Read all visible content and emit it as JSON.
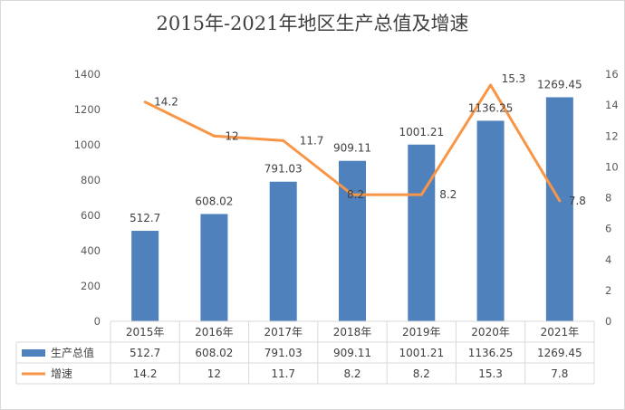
{
  "chart_data": {
    "type": "bar+line",
    "title": "2015年-2021年地区生产总值及增速",
    "categories": [
      "2015年",
      "2016年",
      "2017年",
      "2018年",
      "2019年",
      "2020年",
      "2021年"
    ],
    "series": [
      {
        "name": "生产总值",
        "type": "bar",
        "axis": "left",
        "color": "#4f81bd",
        "values": [
          512.7,
          608.02,
          791.03,
          909.11,
          1001.21,
          1136.25,
          1269.45
        ],
        "labels": [
          "512.7",
          "608.02",
          "791.03",
          "909.11",
          "1001.21",
          "1136.25",
          "1269.45"
        ]
      },
      {
        "name": "增速",
        "type": "line",
        "axis": "right",
        "color": "#f79646",
        "values": [
          14.2,
          12,
          11.7,
          8.2,
          8.2,
          15.3,
          7.8
        ],
        "labels": [
          "14.2",
          "12",
          "11.7",
          "8.2",
          "8.2",
          "15.3",
          "7.8"
        ]
      }
    ],
    "y_left": {
      "min": 0,
      "max": 1400,
      "step": 200,
      "ticks": [
        "0",
        "200",
        "400",
        "600",
        "800",
        "1000",
        "1200",
        "1400"
      ]
    },
    "y_right": {
      "min": 0,
      "max": 16,
      "step": 2,
      "ticks": [
        "0",
        "2",
        "4",
        "6",
        "8",
        "10",
        "12",
        "14",
        "16"
      ]
    },
    "grid": false,
    "legend": "data-table"
  }
}
